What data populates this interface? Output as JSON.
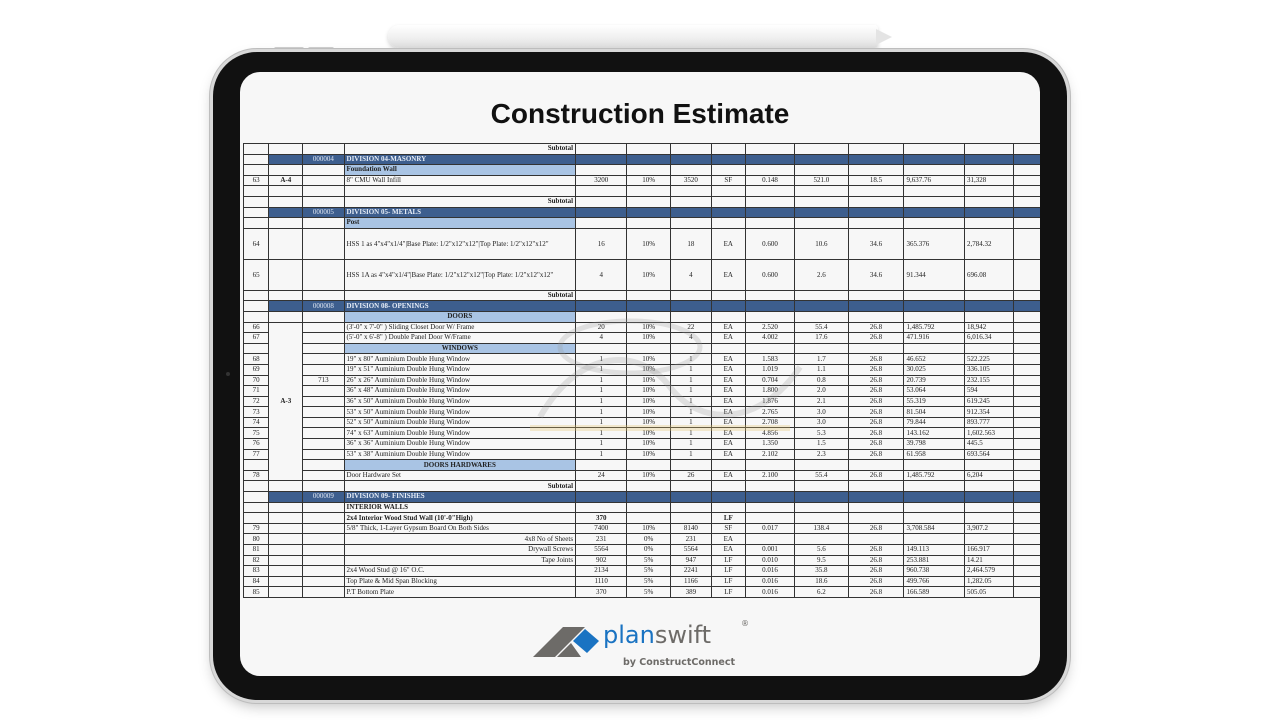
{
  "title": "Construction Estimate",
  "watermark": {
    "monogram": "EFC",
    "word": "Estimate",
    "tagline": "FLORIDA CONSULTING"
  },
  "logo": {
    "name": "planswift",
    "registered": "®",
    "byline": "by ConstructConnect",
    "colors": {
      "blue": "#1a73c2",
      "gray": "#6d6b68"
    }
  },
  "colors": {
    "division": "#3d5e8e",
    "section": "#a9c4e4"
  },
  "table": {
    "rows": [
      {
        "t": "subtotal",
        "c": [
          "",
          "",
          "",
          "Subtotal"
        ]
      },
      {
        "t": "division",
        "c": [
          "",
          "",
          "000004",
          "DIVISION 04-MASONRY"
        ]
      },
      {
        "t": "section",
        "c": [
          "",
          "",
          "",
          "Foundation Wall"
        ]
      },
      {
        "t": "item",
        "c": [
          "63",
          "A-4",
          "",
          "8\" CMU Wall Infill",
          "3200",
          "10%",
          "3520",
          "SF",
          "0.148",
          "521.0",
          "18.5",
          "9,637.76",
          "31,328"
        ]
      },
      {
        "t": "empty",
        "c": []
      },
      {
        "t": "subtotal",
        "c": [
          "",
          "",
          "",
          "Subtotal"
        ]
      },
      {
        "t": "division",
        "c": [
          "",
          "",
          "000005",
          "DIVISION 05- METALS"
        ]
      },
      {
        "t": "section",
        "c": [
          "",
          "",
          "",
          "Post"
        ]
      },
      {
        "t": "tall",
        "c": [
          "64",
          "",
          "",
          "HSS 1  as 4\"x4\"x1/4\"|Base Plate: 1/2\"x12\"x12\"|Top Plate: 1/2\"x12\"x12\"",
          "16",
          "10%",
          "18",
          "EA",
          "0.600",
          "10.6",
          "34.6",
          "365.376",
          "2,784.32"
        ]
      },
      {
        "t": "tall",
        "c": [
          "65",
          "",
          "",
          "HSS 1A  as 4\"x4\"x1/4\"|Base Plate: 1/2\"x12\"x12\"|Top Plate: 1/2\"x12\"x12\"",
          "4",
          "10%",
          "4",
          "EA",
          "0.600",
          "2.6",
          "34.6",
          "91.344",
          "696.08"
        ]
      },
      {
        "t": "subtotal",
        "c": [
          "",
          "",
          "",
          "Subtotal"
        ]
      },
      {
        "t": "division",
        "c": [
          "",
          "",
          "000008",
          "DIVISION 08- OPENINGS"
        ]
      },
      {
        "t": "section-center",
        "c": [
          "",
          "",
          "",
          "DOORS"
        ]
      },
      {
        "t": "item",
        "c": [
          "66",
          "",
          "",
          "(3'-0\" x 7'-0\" ) Sliding Closet Door W/ Frame",
          "20",
          "10%",
          "22",
          "EA",
          "2.520",
          "55.4",
          "26.8",
          "1,485.792",
          "18,942"
        ]
      },
      {
        "t": "item",
        "c": [
          "67",
          "",
          "",
          "(5'-0\" x 6'-8\" ) Double Panel Door W/Frame",
          "4",
          "10%",
          "4",
          "EA",
          "4.002",
          "17.6",
          "26.8",
          "471.916",
          "6,016.34"
        ]
      },
      {
        "t": "section-center",
        "c": [
          "",
          "",
          "",
          "WINDOWS"
        ]
      },
      {
        "t": "item",
        "c": [
          "68",
          "",
          "",
          "19\" x 80\" Auminium Double Hung Window",
          "1",
          "10%",
          "1",
          "EA",
          "1.583",
          "1.7",
          "26.8",
          "46.652",
          "522.225"
        ]
      },
      {
        "t": "item",
        "c": [
          "69",
          "",
          "",
          "19\" x 51\" Auminium Double Hung Window",
          "1",
          "10%",
          "1",
          "EA",
          "1.019",
          "1.1",
          "26.8",
          "30.025",
          "336.105"
        ]
      },
      {
        "t": "item",
        "c": [
          "70",
          "",
          "713",
          "26\" x 26\" Auminium Double Hung Window",
          "1",
          "10%",
          "1",
          "EA",
          "0.704",
          "0.8",
          "26.8",
          "20.739",
          "232.155"
        ]
      },
      {
        "t": "item",
        "c": [
          "71",
          "",
          "",
          "36\" x 48\" Auminium Double Hung Window",
          "1",
          "10%",
          "1",
          "EA",
          "1.800",
          "2.0",
          "26.8",
          "53.064",
          "594"
        ]
      },
      {
        "t": "item",
        "c": [
          "72",
          "A-3",
          "",
          "36\" x 50\" Auminium Double Hung Window",
          "1",
          "10%",
          "1",
          "EA",
          "1.876",
          "2.1",
          "26.8",
          "55.319",
          "619.245"
        ]
      },
      {
        "t": "item",
        "c": [
          "73",
          "",
          "",
          "53\" x 50\" Auminium Double Hung Window",
          "1",
          "10%",
          "1",
          "EA",
          "2.765",
          "3.0",
          "26.8",
          "81.504",
          "912.354"
        ]
      },
      {
        "t": "item",
        "c": [
          "74",
          "",
          "",
          "52\" x 50\" Auminium Double Hung Window",
          "1",
          "10%",
          "1",
          "EA",
          "2.708",
          "3.0",
          "26.8",
          "79.844",
          "893.777"
        ]
      },
      {
        "t": "item",
        "c": [
          "75",
          "",
          "",
          "74\" x 63\" Auminium Double Hung Window",
          "1",
          "10%",
          "1",
          "EA",
          "4.856",
          "5.3",
          "26.8",
          "143.162",
          "1,602.563"
        ]
      },
      {
        "t": "item",
        "c": [
          "76",
          "",
          "",
          "36\" x 36\" Auminium Double Hung Window",
          "1",
          "10%",
          "1",
          "EA",
          "1.350",
          "1.5",
          "26.8",
          "39.798",
          "445.5"
        ]
      },
      {
        "t": "item",
        "c": [
          "77",
          "",
          "",
          "53\" x 38\" Auminium Double Hung Window",
          "1",
          "10%",
          "1",
          "EA",
          "2.102",
          "2.3",
          "26.8",
          "61.958",
          "693.564"
        ]
      },
      {
        "t": "section-center",
        "c": [
          "",
          "",
          "",
          "DOORS HARDWARES"
        ]
      },
      {
        "t": "item",
        "c": [
          "78",
          "",
          "",
          "Door Hardware Set",
          "24",
          "10%",
          "26",
          "EA",
          "2.100",
          "55.4",
          "26.8",
          "1,485.792",
          "6,204"
        ]
      },
      {
        "t": "subtotal",
        "c": [
          "",
          "",
          "",
          "Subtotal"
        ]
      },
      {
        "t": "division",
        "c": [
          "",
          "",
          "000009",
          "DIVISION 09- FINISHES"
        ]
      },
      {
        "t": "bold",
        "c": [
          "",
          "",
          "",
          "INTERIOR WALLS"
        ]
      },
      {
        "t": "bold",
        "c": [
          "",
          "",
          "",
          "2x4 Interior Wood Stud Wall  (10'-0\"High)",
          "370",
          "",
          "",
          "LF"
        ]
      },
      {
        "t": "item",
        "c": [
          "79",
          "",
          "",
          "5/8\" Thick, 1-Layer Gypsum Board On Both Sides",
          "7400",
          "10%",
          "8140",
          "SF",
          "0.017",
          "138.4",
          "26.8",
          "3,708.584",
          "3,907.2"
        ]
      },
      {
        "t": "right",
        "c": [
          "80",
          "",
          "",
          "4x8 No of  Sheets",
          "231",
          "0%",
          "231",
          "EA"
        ]
      },
      {
        "t": "right",
        "c": [
          "81",
          "",
          "",
          "Drywall Screws",
          "5564",
          "0%",
          "5564",
          "EA",
          "0.001",
          "5.6",
          "26.8",
          "149.113",
          "166.917"
        ]
      },
      {
        "t": "right",
        "c": [
          "82",
          "",
          "",
          "Tape Joints",
          "902",
          "5%",
          "947",
          "LF",
          "0.010",
          "9.5",
          "26.8",
          "253.881",
          "14.21"
        ]
      },
      {
        "t": "item",
        "c": [
          "83",
          "",
          "",
          "2x4 Wood Stud @ 16\" O.C.",
          "2134",
          "5%",
          "2241",
          "LF",
          "0.016",
          "35.8",
          "26.8",
          "960.738",
          "2,464.579"
        ]
      },
      {
        "t": "item",
        "c": [
          "84",
          "",
          "",
          "Top Plate & Mid Span Blocking",
          "1110",
          "5%",
          "1166",
          "LF",
          "0.016",
          "18.6",
          "26.8",
          "499.766",
          "1,282.05"
        ]
      },
      {
        "t": "item",
        "c": [
          "85",
          "",
          "",
          "P.T Bottom Plate",
          "370",
          "5%",
          "389",
          "LF",
          "0.016",
          "6.2",
          "26.8",
          "166.589",
          "505.05"
        ]
      }
    ]
  }
}
